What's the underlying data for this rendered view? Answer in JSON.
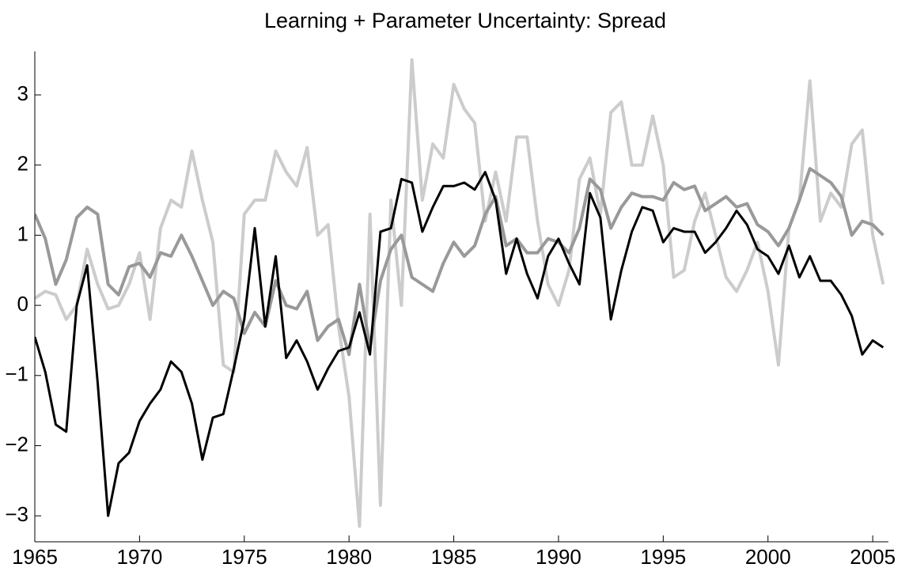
{
  "chart_data": {
    "type": "line",
    "title": "Learning + Parameter Uncertainty: Spread",
    "x": [
      1965,
      1965.5,
      1966,
      1966.5,
      1967,
      1967.5,
      1968,
      1968.5,
      1969,
      1969.5,
      1970,
      1970.5,
      1971,
      1971.5,
      1972,
      1972.5,
      1973,
      1973.5,
      1974,
      1974.5,
      1975,
      1975.5,
      1976,
      1976.5,
      1977,
      1977.5,
      1978,
      1978.5,
      1979,
      1979.5,
      1980,
      1980.5,
      1981,
      1981.5,
      1982,
      1982.5,
      1983,
      1983.5,
      1984,
      1984.5,
      1985,
      1985.5,
      1986,
      1986.5,
      1987,
      1987.5,
      1988,
      1988.5,
      1989,
      1989.5,
      1990,
      1990.5,
      1991,
      1991.5,
      1992,
      1992.5,
      1993,
      1993.5,
      1994,
      1994.5,
      1995,
      1995.5,
      1996,
      1996.5,
      1997,
      1997.5,
      1998,
      1998.5,
      1999,
      1999.5,
      2000,
      2000.5,
      2001,
      2001.5,
      2002,
      2002.5,
      2003,
      2003.5,
      2004,
      2004.5,
      2005,
      2005.5
    ],
    "series": [
      {
        "color": "#cccccc",
        "values": [
          0.1,
          0.2,
          0.15,
          -0.2,
          0.0,
          0.8,
          0.3,
          -0.05,
          0.0,
          0.3,
          0.75,
          -0.2,
          1.1,
          1.5,
          1.4,
          2.2,
          1.5,
          0.9,
          -0.85,
          -0.95,
          1.3,
          1.5,
          1.5,
          2.2,
          1.9,
          1.7,
          2.25,
          1.0,
          1.15,
          -0.3,
          -1.3,
          -3.15,
          1.3,
          -2.85,
          1.5,
          0.0,
          3.5,
          1.5,
          2.3,
          2.1,
          3.15,
          2.8,
          2.6,
          1.2,
          1.9,
          1.2,
          2.4,
          2.4,
          1.2,
          0.3,
          0.0,
          0.5,
          1.8,
          2.1,
          1.3,
          2.75,
          2.9,
          2.0,
          2.0,
          2.7,
          2.0,
          0.4,
          0.5,
          1.2,
          1.6,
          1.0,
          0.4,
          0.2,
          0.5,
          0.9,
          0.2,
          -0.85,
          1.1,
          1.5,
          3.2,
          1.2,
          1.6,
          1.4,
          2.3,
          2.5,
          1.0,
          0.3
        ]
      },
      {
        "color": "#999999",
        "values": [
          1.3,
          0.95,
          0.3,
          0.65,
          1.25,
          1.4,
          1.3,
          0.3,
          0.15,
          0.55,
          0.6,
          0.4,
          0.75,
          0.7,
          1.0,
          0.7,
          0.35,
          0.0,
          0.2,
          0.1,
          -0.4,
          -0.1,
          -0.3,
          0.35,
          0.0,
          -0.05,
          0.2,
          -0.5,
          -0.3,
          -0.2,
          -0.7,
          0.3,
          -0.6,
          0.35,
          0.8,
          1.0,
          0.4,
          0.3,
          0.2,
          0.6,
          0.9,
          0.7,
          0.85,
          1.3,
          1.55,
          0.85,
          0.95,
          0.75,
          0.75,
          0.95,
          0.9,
          0.75,
          1.1,
          1.8,
          1.65,
          1.1,
          1.4,
          1.6,
          1.55,
          1.55,
          1.5,
          1.75,
          1.65,
          1.7,
          1.35,
          1.45,
          1.55,
          1.4,
          1.45,
          1.15,
          1.05,
          0.85,
          1.1,
          1.5,
          1.95,
          1.85,
          1.75,
          1.55,
          1.0,
          1.2,
          1.15,
          1.0
        ]
      },
      {
        "color": "#000000",
        "values": [
          -0.45,
          -0.95,
          -1.7,
          -1.8,
          0.0,
          0.57,
          -1.1,
          -3.0,
          -2.25,
          -2.1,
          -1.65,
          -1.4,
          -1.2,
          -0.8,
          -0.95,
          -1.4,
          -2.2,
          -1.6,
          -1.55,
          -0.9,
          -0.2,
          1.1,
          -0.3,
          0.7,
          -0.75,
          -0.5,
          -0.8,
          -1.2,
          -0.9,
          -0.65,
          -0.6,
          -0.1,
          -0.7,
          1.05,
          1.1,
          1.8,
          1.75,
          1.05,
          1.4,
          1.7,
          1.7,
          1.75,
          1.65,
          1.9,
          1.5,
          0.45,
          0.95,
          0.45,
          0.1,
          0.7,
          0.95,
          0.6,
          0.3,
          1.6,
          1.25,
          -0.2,
          0.5,
          1.05,
          1.4,
          1.35,
          0.9,
          1.1,
          1.05,
          1.05,
          0.75,
          0.9,
          1.1,
          1.35,
          1.15,
          0.8,
          0.7,
          0.45,
          0.85,
          0.4,
          0.7,
          0.35,
          0.35,
          0.15,
          -0.15,
          -0.7,
          -0.5,
          -0.6
        ]
      }
    ],
    "xlim": [
      1965,
      2005.75
    ],
    "xticks": [
      1965,
      1970,
      1975,
      1980,
      1985,
      1990,
      1995,
      2000,
      2005
    ],
    "ylim": [
      -3.37,
      3.62
    ],
    "yticks": [
      {
        "value": -3,
        "label": "−3"
      },
      {
        "value": -2,
        "label": "−2"
      },
      {
        "value": -1,
        "label": "−1"
      },
      0,
      1,
      2,
      3
    ],
    "grid": false
  }
}
